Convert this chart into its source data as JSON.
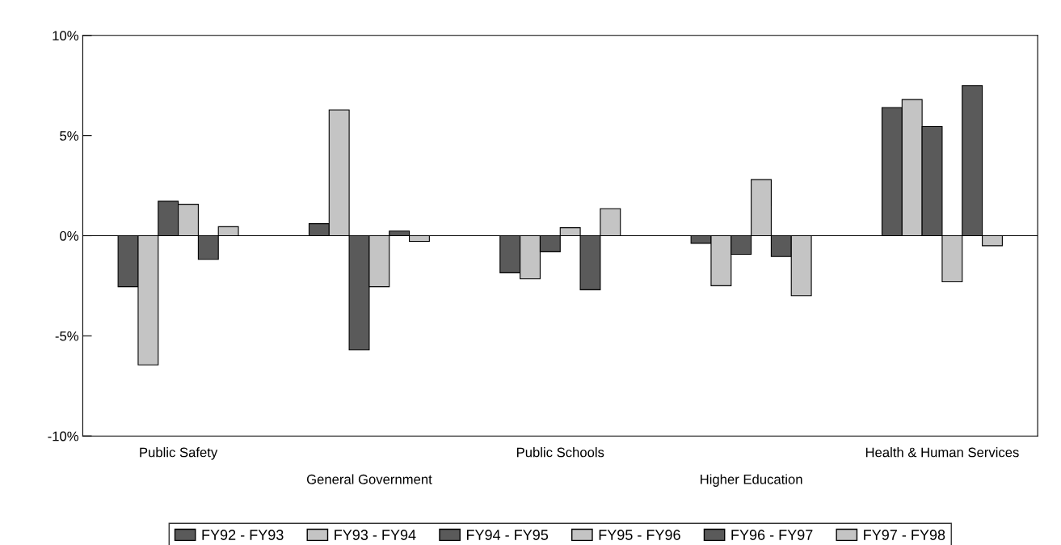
{
  "chart_data": {
    "type": "bar",
    "categories": [
      "Public Safety",
      "General Government",
      "Public Schools",
      "Higher Education",
      "Health & Human Services"
    ],
    "series": [
      {
        "name": "FY92 - FY93",
        "color": "#5a5a5a",
        "values": [
          -2.55,
          0.6,
          -1.85,
          -0.38,
          6.4
        ]
      },
      {
        "name": "FY93 - FY94",
        "color": "#c4c4c4",
        "values": [
          -6.45,
          6.28,
          -2.15,
          -2.5,
          6.8
        ]
      },
      {
        "name": "FY94 - FY95",
        "color": "#5a5a5a",
        "values": [
          1.72,
          -5.7,
          -0.8,
          -0.93,
          5.45
        ]
      },
      {
        "name": "FY95 - FY96",
        "color": "#c4c4c4",
        "values": [
          1.57,
          -2.55,
          0.4,
          2.8,
          -2.3
        ]
      },
      {
        "name": "FY96 - FY97",
        "color": "#5a5a5a",
        "values": [
          -1.18,
          0.23,
          -2.7,
          -1.04,
          7.5
        ]
      },
      {
        "name": "FY97 - FY98",
        "color": "#c4c4c4",
        "values": [
          0.45,
          -0.28,
          1.35,
          -3.0,
          -0.5
        ]
      }
    ],
    "ylim": [
      -10,
      10
    ],
    "yticks": [
      {
        "value": -10,
        "label": "-10%"
      },
      {
        "value": -5,
        "label": "-5%"
      },
      {
        "value": 0,
        "label": "0%"
      },
      {
        "value": 5,
        "label": "5%"
      },
      {
        "value": 10,
        "label": "10%"
      }
    ],
    "ref_lines": [
      {
        "axis": "y",
        "value": 0,
        "color": "#000000"
      }
    ],
    "legend": "bottom"
  }
}
